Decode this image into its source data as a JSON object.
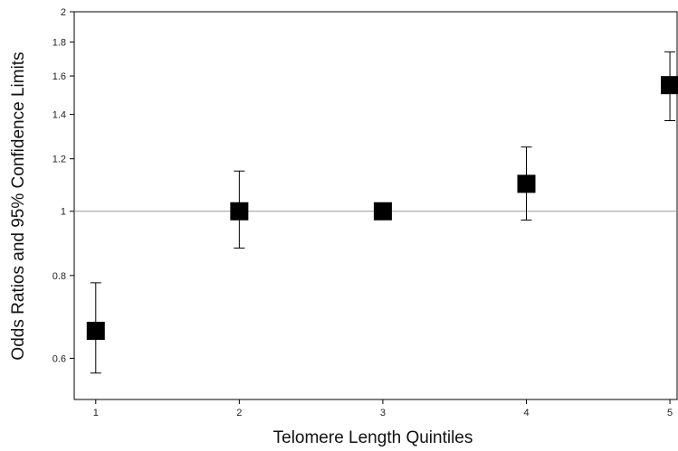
{
  "chart_data": {
    "type": "scatter",
    "title": "",
    "xlabel": "Telomere Length Quintiles",
    "ylabel": "Odds Ratios and 95% Confidence Limits",
    "y_scale": "log",
    "xlim": [
      0.85,
      5.05
    ],
    "ylim": [
      0.52,
      2.0
    ],
    "x_ticks": [
      "1",
      "2",
      "3",
      "4",
      "5"
    ],
    "y_ticks": [
      "0.6",
      "0.8",
      "1",
      "1.2",
      "1.4",
      "1.6",
      "1.8",
      "2"
    ],
    "reference_line": 1.0,
    "grid": false,
    "legend": "none",
    "points": [
      {
        "x": 1,
        "or": 0.66,
        "lower": 0.57,
        "upper": 0.78
      },
      {
        "x": 2,
        "or": 1.0,
        "lower": 0.88,
        "upper": 1.15
      },
      {
        "x": 3,
        "or": 1.0,
        "lower": 1.0,
        "upper": 1.0
      },
      {
        "x": 4,
        "or": 1.1,
        "lower": 0.97,
        "upper": 1.25
      },
      {
        "x": 5,
        "or": 1.55,
        "lower": 1.37,
        "upper": 1.74
      }
    ],
    "colors": {
      "marker": "#000000",
      "error_bar": "#000000",
      "reference_line": "#999999",
      "axis": "#000000"
    }
  }
}
